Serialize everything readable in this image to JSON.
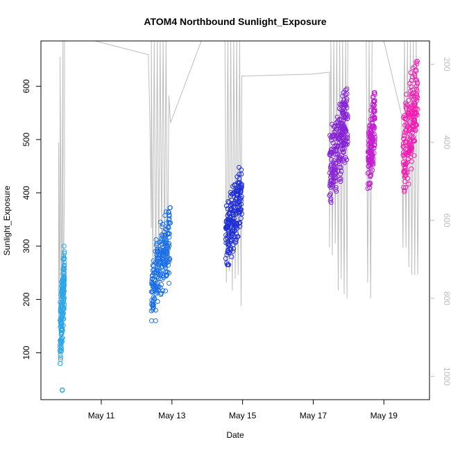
{
  "chart_data": {
    "type": "scatter",
    "title": "ATOM4 Northbound Sunlight_Exposure",
    "xlabel": "Date",
    "ylabel": "Sunlight_Exposure",
    "x_ticks": [
      "May 11",
      "May 13",
      "May 15",
      "May 17",
      "May 19"
    ],
    "x_tick_dates": [
      "2024-05-11",
      "2024-05-13",
      "2024-05-15",
      "2024-05-17",
      "2024-05-19"
    ],
    "xlim": [
      "2024-05-09 07:00",
      "2024-05-20 07:00"
    ],
    "y_ticks": [
      100,
      200,
      300,
      400,
      500,
      600
    ],
    "ylim": [
      12,
      685
    ],
    "y2_ticks": [
      200,
      400,
      600,
      800,
      1000
    ],
    "y2lim": [
      1060,
      140
    ],
    "y2_color": "#bdbdbd",
    "grid": false,
    "marker": "open-circle",
    "line_color": "#bdbdbd",
    "clusters": [
      {
        "start": "2024-05-09 20:00",
        "end": "2024-05-09 23:00",
        "y_min": 80,
        "y_max": 300,
        "color": "#2ea6e8",
        "n": 170,
        "outlier": 30
      },
      {
        "start": "2024-05-12 10:00",
        "end": "2024-05-12 23:00",
        "y_min": 160,
        "y_max": 372,
        "color": "#1b6ee8",
        "n": 220
      },
      {
        "start": "2024-05-14 12:30",
        "end": "2024-05-14 23:30",
        "y_min": 265,
        "y_max": 450,
        "color": "#1f2fd6",
        "n": 200
      },
      {
        "start": "2024-05-17 11:00",
        "end": "2024-05-17 23:30",
        "y_min": 382,
        "y_max": 595,
        "color": "#8622d6",
        "n": 240
      },
      {
        "start": "2024-05-18 13:00",
        "end": "2024-05-18 18:00",
        "y_min": 392,
        "y_max": 588,
        "color": "#c21fd0",
        "n": 150
      },
      {
        "start": "2024-05-19 13:00",
        "end": "2024-05-19 23:00",
        "y_min": 390,
        "y_max": 658,
        "color": "#f21cb2",
        "n": 200
      }
    ],
    "line_series": [
      [
        "2024-05-09 19:00",
        860
      ],
      [
        "2024-05-09 19:00",
        400
      ],
      [
        "2024-05-09 20:00",
        910
      ],
      [
        "2024-05-09 20:00",
        180
      ],
      [
        "2024-05-09 21:00",
        800
      ],
      [
        "2024-05-09 22:00",
        120
      ],
      [
        "2024-05-09 22:00",
        840
      ],
      [
        "2024-05-09 23:00",
        520
      ],
      [
        "2024-05-09 23:00",
        120
      ],
      [
        "2024-05-12 08:00",
        175
      ],
      [
        "2024-05-12 09:00",
        340
      ],
      [
        "2024-05-12 10:00",
        620
      ],
      [
        "2024-05-12 10:00",
        140
      ],
      [
        "2024-05-12 11:00",
        730
      ],
      [
        "2024-05-12 12:00",
        140
      ],
      [
        "2024-05-12 13:00",
        760
      ],
      [
        "2024-05-12 14:00",
        140
      ],
      [
        "2024-05-12 15:00",
        720
      ],
      [
        "2024-05-12 16:00",
        140
      ],
      [
        "2024-05-12 17:00",
        650
      ],
      [
        "2024-05-12 18:00",
        140
      ],
      [
        "2024-05-12 19:00",
        690
      ],
      [
        "2024-05-12 20:00",
        140
      ],
      [
        "2024-05-12 21:00",
        740
      ],
      [
        "2024-05-12 22:00",
        280
      ],
      [
        "2024-05-12 23:00",
        350
      ],
      [
        "2024-05-13 20:00",
        140
      ],
      [
        "2024-05-14 12:00",
        140
      ],
      [
        "2024-05-14 13:00",
        760
      ],
      [
        "2024-05-14 14:00",
        140
      ],
      [
        "2024-05-14 15:00",
        730
      ],
      [
        "2024-05-14 16:00",
        140
      ],
      [
        "2024-05-14 17:00",
        780
      ],
      [
        "2024-05-14 18:00",
        140
      ],
      [
        "2024-05-14 19:00",
        750
      ],
      [
        "2024-05-14 20:00",
        140
      ],
      [
        "2024-05-14 21:00",
        740
      ],
      [
        "2024-05-14 22:00",
        140
      ],
      [
        "2024-05-14 23:00",
        820
      ],
      [
        "2024-05-14 23:30",
        230
      ],
      [
        "2024-05-17 00:00",
        225
      ],
      [
        "2024-05-17 11:00",
        220
      ],
      [
        "2024-05-17 11:00",
        670
      ],
      [
        "2024-05-17 12:00",
        140
      ],
      [
        "2024-05-17 13:00",
        690
      ],
      [
        "2024-05-17 14:00",
        140
      ],
      [
        "2024-05-17 15:00",
        660
      ],
      [
        "2024-05-17 16:00",
        140
      ],
      [
        "2024-05-17 17:00",
        780
      ],
      [
        "2024-05-17 18:00",
        140
      ],
      [
        "2024-05-17 19:00",
        750
      ],
      [
        "2024-05-17 20:00",
        140
      ],
      [
        "2024-05-17 21:00",
        790
      ],
      [
        "2024-05-17 22:00",
        140
      ],
      [
        "2024-05-17 23:00",
        800
      ],
      [
        "2024-05-17 23:30",
        140
      ],
      [
        "2024-05-18 12:00",
        140
      ],
      [
        "2024-05-18 13:00",
        760
      ],
      [
        "2024-05-18 14:00",
        140
      ],
      [
        "2024-05-18 15:00",
        800
      ],
      [
        "2024-05-18 16:00",
        140
      ],
      [
        "2024-05-18 18:00",
        140
      ],
      [
        "2024-05-19 00:00",
        140
      ],
      [
        "2024-05-19 12:00",
        330
      ],
      [
        "2024-05-19 13:00",
        670
      ],
      [
        "2024-05-19 14:00",
        140
      ],
      [
        "2024-05-19 15:00",
        670
      ],
      [
        "2024-05-19 16:00",
        140
      ],
      [
        "2024-05-19 17:00",
        720
      ],
      [
        "2024-05-19 18:00",
        140
      ],
      [
        "2024-05-19 19:00",
        740
      ],
      [
        "2024-05-19 20:00",
        140
      ],
      [
        "2024-05-19 21:00",
        740
      ],
      [
        "2024-05-19 22:00",
        140
      ],
      [
        "2024-05-19 23:00",
        740
      ],
      [
        "2024-05-20 00:00",
        330
      ]
    ]
  }
}
